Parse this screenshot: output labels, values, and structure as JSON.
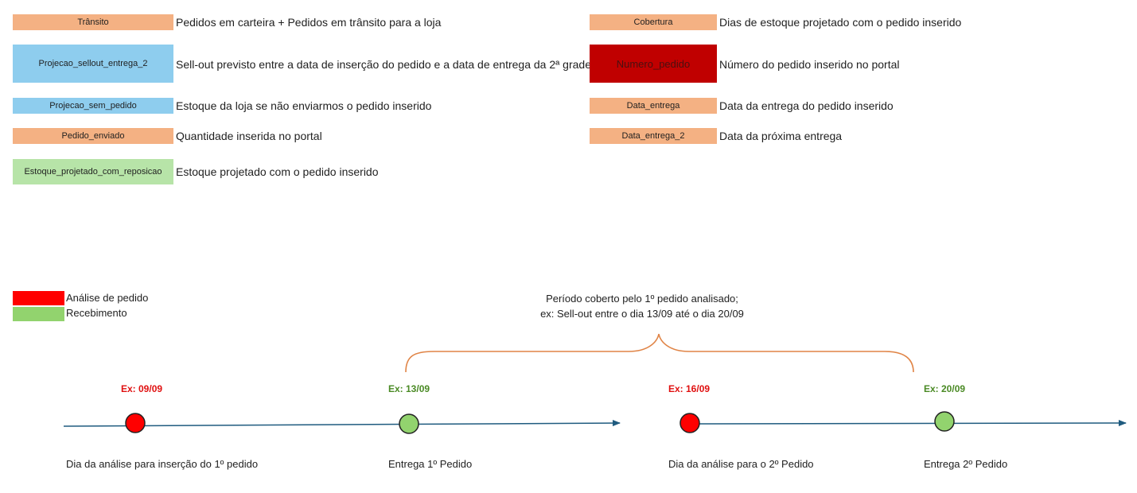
{
  "colors": {
    "peach": "#f4b183",
    "blue": "#8ecdee",
    "green": "#b7e4a8",
    "dark_red": "#c00000",
    "red": "#ff0000",
    "legend_green": "#92d36e",
    "timeline": "#1f5b7f",
    "brace": "#e08446",
    "date_red": "#e01010",
    "date_green": "#4a8a24"
  },
  "fields_left": [
    {
      "name": "Trânsito",
      "desc": "Pedidos em carteira + Pedidos em trânsito para a loja"
    },
    {
      "name": "Projecao_sellout_entrega_2",
      "desc": "Sell-out previsto entre a data de inserção do pedido e a data de entrega da 2ª grade"
    },
    {
      "name": "Projecao_sem_pedido",
      "desc": "Estoque da loja se não enviarmos o pedido inserido"
    },
    {
      "name": "Pedido_enviado",
      "desc": "Quantidade inserida no portal"
    },
    {
      "name": "Estoque_projetado_com_reposicao",
      "desc": "Estoque projetado com o pedido inserido"
    }
  ],
  "fields_right": [
    {
      "name": "Cobertura",
      "desc": "Dias de estoque projetado com o pedido inserido"
    },
    {
      "name": "Numero_pedido",
      "desc": "Número do pedido inserido no portal"
    },
    {
      "name": "Data_entrega",
      "desc": "Data da entrega do pedido inserido"
    },
    {
      "name": "Data_entrega_2",
      "desc": "Data da próxima entrega"
    }
  ],
  "legend": [
    {
      "label": "Análise de pedido"
    },
    {
      "label": "Recebimento"
    }
  ],
  "period": {
    "line1": "Período coberto pelo 1º pedido analisado;",
    "line2": "ex: Sell-out entre o dia 13/09 até o dia 20/09"
  },
  "timeline": [
    {
      "date": "Ex: 09/09",
      "caption": "Dia da análise para inserção do 1º pedido"
    },
    {
      "date": "Ex: 13/09",
      "caption": "Entrega 1º Pedido"
    },
    {
      "date": "Ex: 16/09",
      "caption": "Dia da análise para o 2º Pedido"
    },
    {
      "date": "Ex: 20/09",
      "caption": "Entrega 2º Pedido"
    }
  ]
}
